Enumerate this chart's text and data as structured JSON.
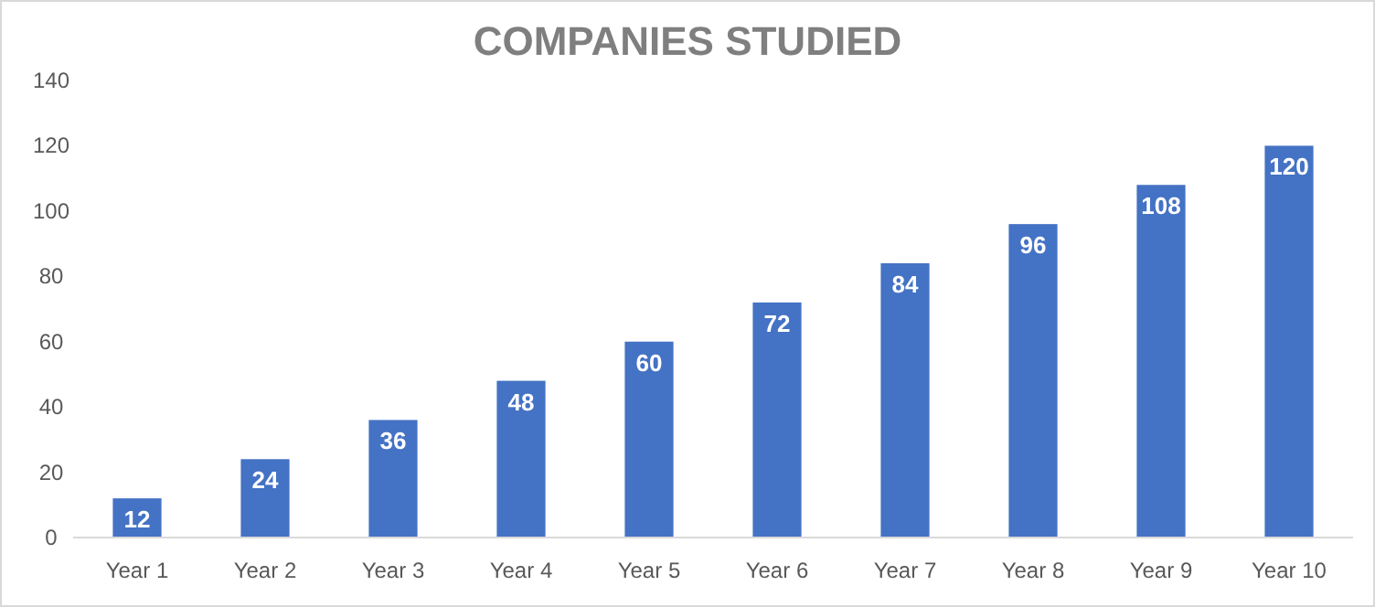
{
  "chart_data": {
    "type": "bar",
    "title": "COMPANIES STUDIED",
    "categories": [
      "Year 1",
      "Year 2",
      "Year 3",
      "Year 4",
      "Year 5",
      "Year 6",
      "Year 7",
      "Year 8",
      "Year 9",
      "Year 10"
    ],
    "values": [
      12,
      24,
      36,
      48,
      60,
      72,
      84,
      96,
      108,
      120
    ],
    "color": "#4472c4",
    "ylim": [
      0,
      140
    ],
    "yticks": [
      0,
      20,
      40,
      60,
      80,
      100,
      120,
      140
    ],
    "grid": false,
    "data_labels": true
  }
}
